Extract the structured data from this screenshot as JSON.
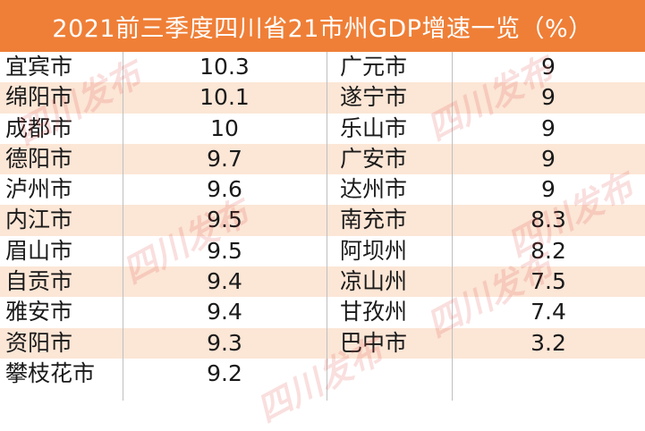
{
  "title": "2021前三季度四川省21市州GDP增速一览（%）",
  "left_table": [
    {
      "city": "宜宾市",
      "value": "10.3"
    },
    {
      "city": "绵阳市",
      "value": "10.1"
    },
    {
      "city": "成都市",
      "value": "10"
    },
    {
      "city": "德阳市",
      "value": "9.7"
    },
    {
      "city": "泸州市",
      "value": "9.6"
    },
    {
      "city": "内江市",
      "value": "9.5"
    },
    {
      "city": "眉山市",
      "value": "9.5"
    },
    {
      "city": "自贡市",
      "value": "9.4"
    },
    {
      "city": "雅安市",
      "value": "9.4"
    },
    {
      "city": "资阳市",
      "value": "9.3"
    },
    {
      "city": "攀枝花市",
      "value": "9.2"
    }
  ],
  "right_table": [
    {
      "city": "广元市",
      "value": "9"
    },
    {
      "city": "遂宁市",
      "value": "9"
    },
    {
      "city": "乐山市",
      "value": "9"
    },
    {
      "city": "广安市",
      "value": "9"
    },
    {
      "city": "达州市",
      "value": "9"
    },
    {
      "city": "南充市",
      "value": "8.3"
    },
    {
      "city": "阿坝州",
      "value": "8.2"
    },
    {
      "city": "凉山州",
      "value": "7.5"
    },
    {
      "city": "甘孜州",
      "value": "7.4"
    },
    {
      "city": "巴中市",
      "value": "3.2"
    },
    {
      "city": "",
      "value": ""
    }
  ],
  "watermark_text": "四川发布",
  "colors": {
    "header": "#ef7f37",
    "shade_row": "#fce6d6"
  }
}
